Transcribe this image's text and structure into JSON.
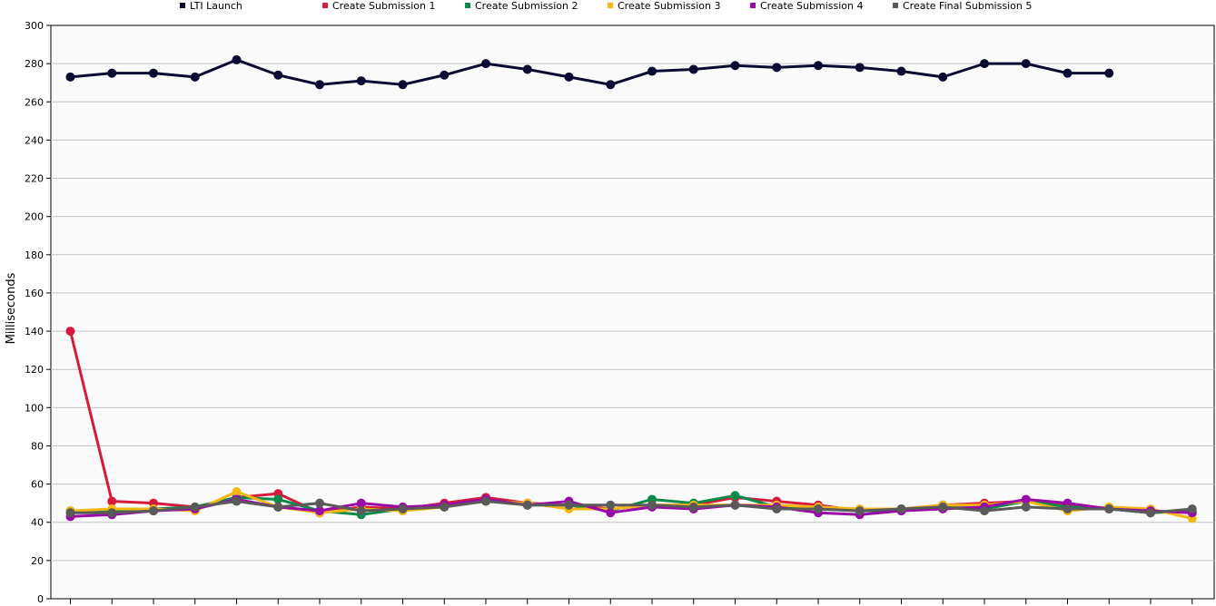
{
  "chart_data": {
    "type": "line",
    "ylabel": "Milliseconds",
    "ylim": [
      0,
      300
    ],
    "ytick_step": 20,
    "yticks": [
      "0",
      "20",
      "40",
      "60",
      "80",
      "100",
      "120",
      "140",
      "160",
      "180",
      "200",
      "220",
      "240",
      "260",
      "280",
      "300"
    ],
    "x_count": 28,
    "grid": true,
    "legend_placement": "top",
    "series": [
      {
        "name": "LTI Launch",
        "color": "#0a0a33",
        "values": [
          273,
          275,
          275,
          273,
          282,
          274,
          269,
          271,
          269,
          274,
          280,
          277,
          273,
          269,
          276,
          277,
          279,
          278,
          279,
          278,
          276,
          273,
          280,
          280,
          275,
          275,
          null,
          null
        ]
      },
      {
        "name": "Create Submission 1",
        "color": "#d61a3c",
        "values": [
          140,
          51,
          50,
          48,
          53,
          55,
          45,
          48,
          47,
          50,
          53,
          50,
          49,
          47,
          49,
          49,
          53,
          51,
          49,
          46,
          47,
          49,
          50,
          51,
          49,
          47,
          46,
          45
        ]
      },
      {
        "name": "Create Submission 2",
        "color": "#0a8a48",
        "values": [
          46,
          46,
          47,
          48,
          53,
          52,
          46,
          44,
          47,
          48,
          52,
          49,
          49,
          46,
          52,
          50,
          54,
          48,
          47,
          46,
          46,
          49,
          47,
          51,
          48,
          47,
          45,
          46
        ]
      },
      {
        "name": "Create Submission 3",
        "color": "#f5b811",
        "values": [
          46,
          47,
          47,
          46,
          56,
          48,
          45,
          47,
          46,
          48,
          51,
          50,
          47,
          47,
          49,
          49,
          49,
          49,
          48,
          47,
          47,
          49,
          49,
          51,
          46,
          48,
          47,
          42
        ]
      },
      {
        "name": "Create Submission 4",
        "color": "#9a0aa8",
        "values": [
          43,
          44,
          46,
          47,
          52,
          48,
          46,
          50,
          48,
          49,
          52,
          49,
          51,
          45,
          48,
          47,
          49,
          48,
          45,
          44,
          46,
          47,
          48,
          52,
          50,
          47,
          46,
          45
        ]
      },
      {
        "name": "Create Final Submission 5",
        "color": "#5a5a5a",
        "values": [
          45,
          45,
          46,
          48,
          51,
          48,
          50,
          46,
          47,
          48,
          51,
          49,
          49,
          49,
          49,
          48,
          49,
          47,
          47,
          46,
          47,
          48,
          46,
          48,
          47,
          47,
          45,
          47
        ]
      }
    ]
  }
}
